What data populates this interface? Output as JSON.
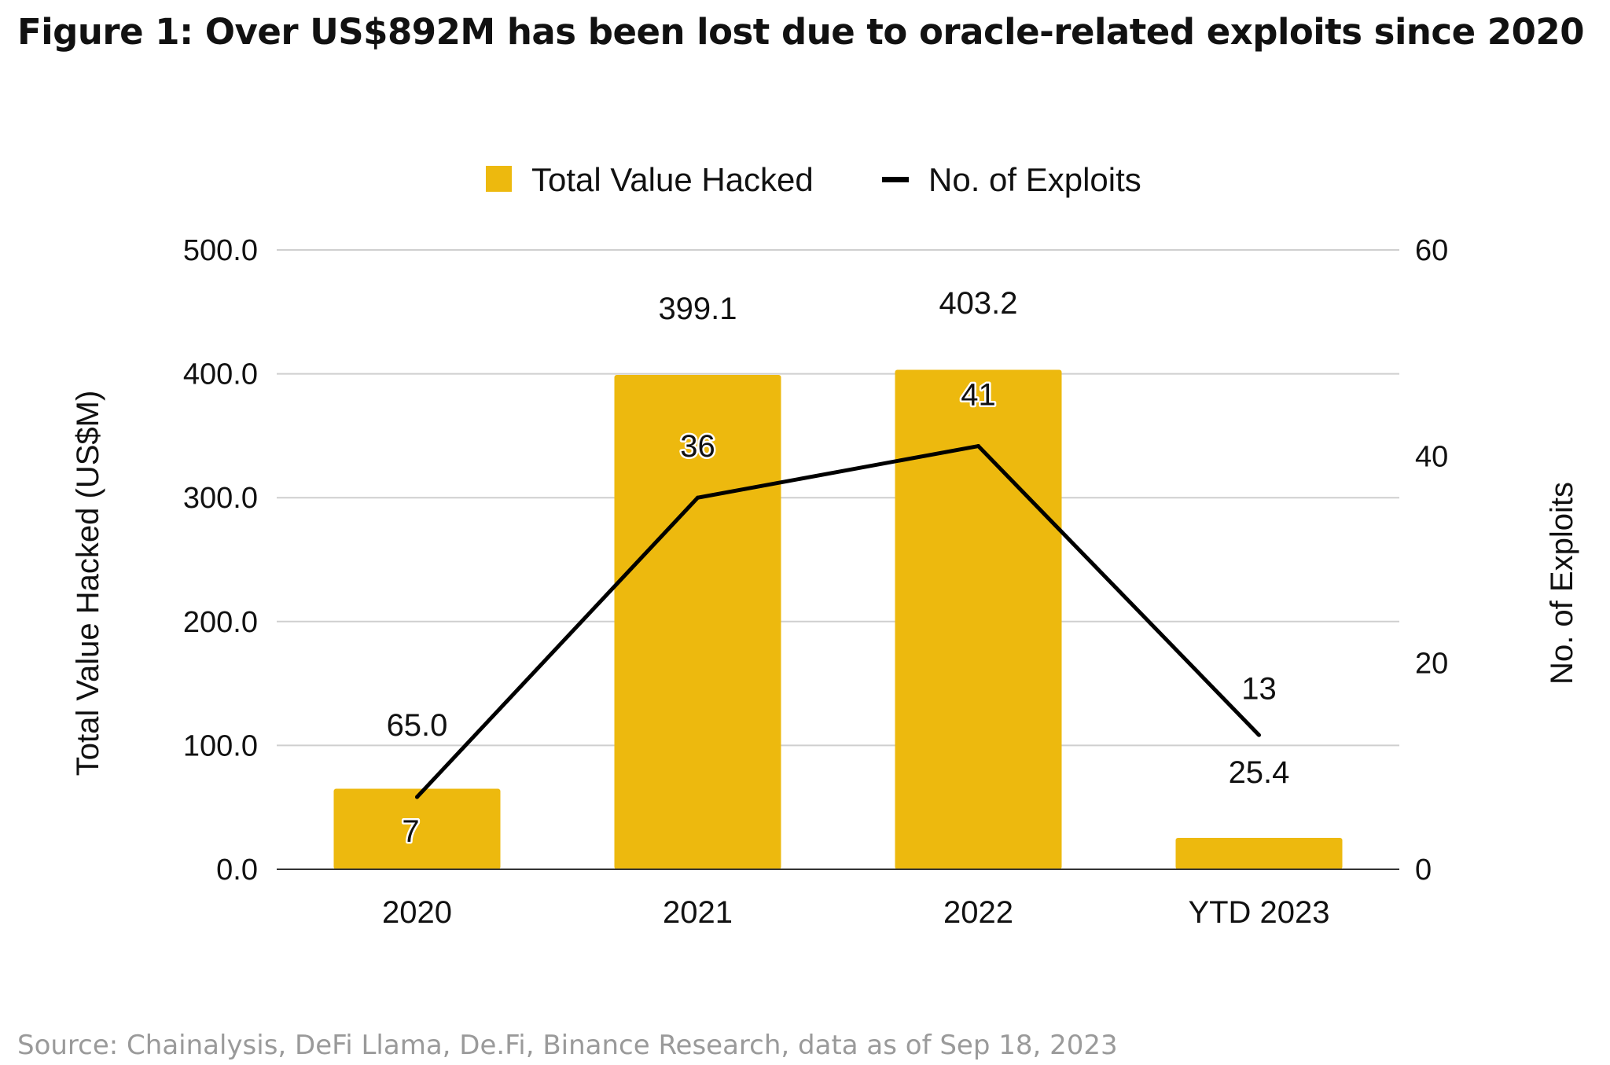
{
  "title": "Figure 1: Over US$892M has been lost due to oracle-related exploits since 2020",
  "source": "Source: Chainalysis, DeFi Llama, De.Fi, Binance Research, data as of Sep 18, 2023",
  "chart_data": {
    "type": "bar",
    "categories": [
      "2020",
      "2021",
      "2022",
      "YTD 2023"
    ],
    "series": [
      {
        "name": "Total Value Hacked",
        "type": "bar",
        "axis": "left",
        "color": "#EDB90E",
        "values": [
          65.0,
          399.1,
          403.2,
          25.4
        ],
        "labels": [
          "65.0",
          "399.1",
          "403.2",
          "25.4"
        ]
      },
      {
        "name": "No. of Exploits",
        "type": "line",
        "axis": "right",
        "color": "#000000",
        "values": [
          7,
          36,
          41,
          13
        ],
        "labels": [
          "7",
          "36",
          "41",
          "13"
        ]
      }
    ],
    "y_left": {
      "label": "Total Value Hacked (US$M)",
      "min": 0,
      "max": 500,
      "ticks": [
        0,
        100,
        200,
        300,
        400,
        500
      ],
      "tick_labels": [
        "0.0",
        "100.0",
        "200.0",
        "300.0",
        "400.0",
        "500.0"
      ]
    },
    "y_right": {
      "label": "No. of Exploits",
      "min": 0,
      "max": 60,
      "ticks": [
        0,
        20,
        40,
        60
      ],
      "tick_labels": [
        "0",
        "20",
        "40",
        "60"
      ]
    },
    "grid": true,
    "legend_position": "top-center"
  }
}
